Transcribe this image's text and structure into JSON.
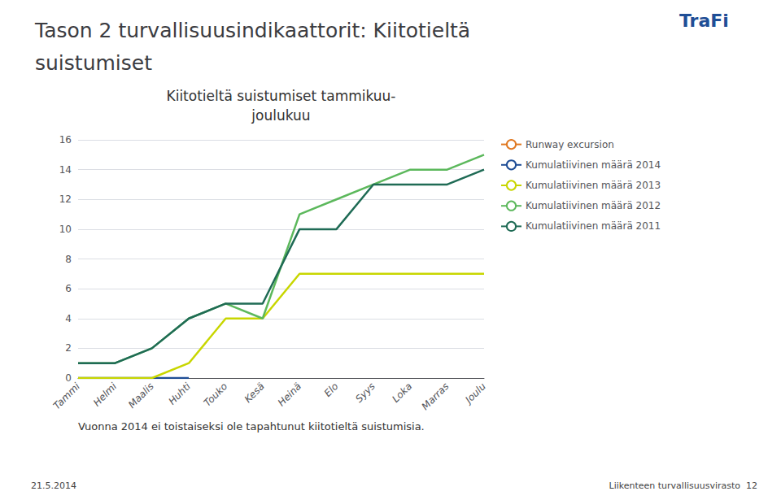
{
  "chart_data": {
    "type": "line",
    "title": "Tason 2 turvallisuusindikaattorit: Kiitotieltä\nsuistumiset",
    "subtitle": "Kiitotieltä suistumiset tammikuu-\njoulukuu",
    "annotations": [
      "Vuonna 2014 ei toistaiseksi ole tapahtunut kiitotieltä suistumisia.",
      "21.5.2014",
      "Liikenteen turvallisuusvirasto  12",
      "TraFi"
    ],
    "categories": [
      "Tammi",
      "Helmi",
      "Maalis",
      "Huhti",
      "Touko",
      "Kesä",
      "Heinä",
      "Elo",
      "Syys",
      "Loka",
      "Marras",
      "Joulu"
    ],
    "series": [
      {
        "name": "Runway excursion",
        "color": "#E07820",
        "values": [
          null,
          null,
          null,
          null,
          null,
          null,
          null,
          null,
          null,
          null,
          null,
          null
        ]
      },
      {
        "name": "Kumulatiivinen määrä 2014",
        "color": "#1F4E96",
        "values": [
          0,
          0,
          0,
          0,
          null,
          null,
          null,
          null,
          null,
          null,
          null,
          null
        ]
      },
      {
        "name": "Kumulatiivinen määrä 2013",
        "color": "#C8D600",
        "values": [
          0,
          0,
          0,
          1,
          4,
          4,
          7,
          7,
          7,
          7,
          7,
          7
        ]
      },
      {
        "name": "Kumulatiivinen määrä 2012",
        "color": "#5CB85C",
        "values": [
          1,
          1,
          2,
          4,
          5,
          4,
          11,
          12,
          13,
          14,
          14,
          15
        ]
      },
      {
        "name": "Kumulatiivinen määrä 2011",
        "color": "#1F6B55",
        "values": [
          1,
          1,
          2,
          4,
          5,
          5,
          10,
          10,
          13,
          13,
          13,
          14
        ]
      }
    ],
    "ylim": [
      0,
      16
    ],
    "yticks": [
      0,
      2,
      4,
      6,
      8,
      10,
      12,
      14,
      16
    ],
    "grid": true,
    "legend": "right"
  }
}
